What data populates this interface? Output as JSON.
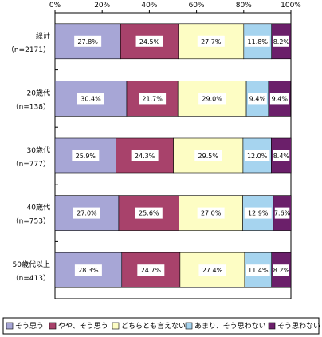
{
  "chart_data": {
    "type": "bar",
    "orientation": "horizontal",
    "stacked": true,
    "percent": true,
    "xlim": [
      0,
      100
    ],
    "x_ticks": [
      "0%",
      "20%",
      "40%",
      "60%",
      "80%",
      "100%"
    ],
    "grid": false,
    "legend_position": "bottom",
    "categories": [
      [
        "総計",
        "（n=2171）"
      ],
      [
        "20歳代",
        "（n=138）"
      ],
      [
        "30歳代",
        "（n=777）"
      ],
      [
        "40歳代",
        "（n=753）"
      ],
      [
        "50歳代以上",
        "（n=413）"
      ]
    ],
    "series": [
      {
        "name": "そう思う",
        "color": "#a7a6d6",
        "values": [
          27.8,
          30.4,
          25.9,
          27.0,
          28.3
        ],
        "labels": [
          "27.8%",
          "30.4%",
          "25.9%",
          "27.0%",
          "28.3%"
        ]
      },
      {
        "name": "やや、そう思う",
        "color": "#a8426b",
        "values": [
          24.5,
          21.7,
          24.3,
          25.6,
          24.7
        ],
        "labels": [
          "24.5%",
          "21.7%",
          "24.3%",
          "25.6%",
          "24.7%"
        ]
      },
      {
        "name": "どちらとも言えない",
        "color": "#fdfdc4",
        "values": [
          27.7,
          29.0,
          29.5,
          27.0,
          27.4
        ],
        "labels": [
          "27.7%",
          "29.0%",
          "29.5%",
          "27.0%",
          "27.4%"
        ]
      },
      {
        "name": "あまり、そう思わない",
        "color": "#a6d4ef",
        "values": [
          11.8,
          9.4,
          12.0,
          12.9,
          11.4
        ],
        "labels": [
          "11.8%",
          "9.4%",
          "12.0%",
          "12.9%",
          "11.4%"
        ]
      },
      {
        "name": "そう思わない",
        "color": "#6b1f6a",
        "values": [
          8.2,
          9.4,
          8.4,
          7.6,
          8.2
        ],
        "labels": [
          "8.2%",
          "9.4%",
          "8.4%",
          "7.6%",
          "8.2%"
        ]
      }
    ]
  }
}
